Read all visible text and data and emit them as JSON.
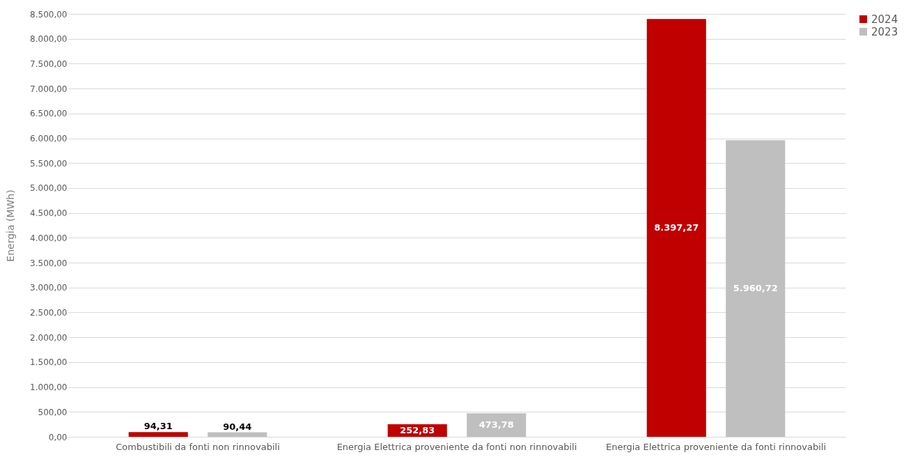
{
  "chart_data": {
    "type": "bar",
    "ylabel": "Energia (MWh)",
    "categories": [
      "Combustibili da fonti non rinnovabili",
      "Energia Elettrica proveniente da fonti non rinnovabili",
      "Energia Elettrica proveniente da fonti rinnovabili"
    ],
    "series": [
      {
        "name": "2024",
        "color": "#c00000",
        "values": [
          94.31,
          252.83,
          8397.27
        ],
        "value_labels": [
          "94,31",
          "252,83",
          "8.397,27"
        ]
      },
      {
        "name": "2023",
        "color": "#bfbfbf",
        "values": [
          90.44,
          473.78,
          5960.72
        ],
        "value_labels": [
          "90,44",
          "473,78",
          "5.960,72"
        ]
      }
    ],
    "ylim": [
      0,
      8500
    ],
    "yticks": [
      {
        "value": 0,
        "label": "0,00"
      },
      {
        "value": 500,
        "label": "500,00"
      },
      {
        "value": 1000,
        "label": "1.000,00"
      },
      {
        "value": 1500,
        "label": "1.500,00"
      },
      {
        "value": 2000,
        "label": "2.000,00"
      },
      {
        "value": 2500,
        "label": "2.500,00"
      },
      {
        "value": 3000,
        "label": "3.000,00"
      },
      {
        "value": 3500,
        "label": "3.500,00"
      },
      {
        "value": 4000,
        "label": "4.000,00"
      },
      {
        "value": 4500,
        "label": "4.500,00"
      },
      {
        "value": 5000,
        "label": "5.000,00"
      },
      {
        "value": 5500,
        "label": "5.500,00"
      },
      {
        "value": 6000,
        "label": "6.000,00"
      },
      {
        "value": 6500,
        "label": "6.500,00"
      },
      {
        "value": 7000,
        "label": "7.000,00"
      },
      {
        "value": 7500,
        "label": "7.500,00"
      },
      {
        "value": 8000,
        "label": "8.000,00"
      },
      {
        "value": 8500,
        "label": "8.500,00"
      }
    ],
    "grid": "y",
    "legend": "top right"
  }
}
